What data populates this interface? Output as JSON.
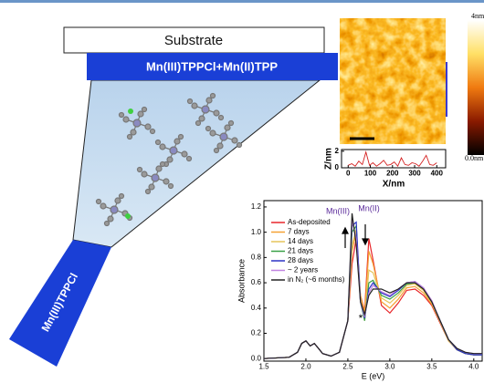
{
  "diagram": {
    "substrate": "Substrate",
    "top_layer": "Mn(III)TPPCl+Mn(II)TPP",
    "bottom_layer": "Mn(III)TPPCl"
  },
  "afm": {
    "scale_max": "4nm",
    "scale_min": "0.0nm"
  },
  "chart_data": [
    {
      "type": "line",
      "x_label": "E (eV)",
      "y_label": "Absorbance",
      "x": [
        1.5,
        1.8,
        1.9,
        1.95,
        2.0,
        2.05,
        2.1,
        2.15,
        2.2,
        2.3,
        2.4,
        2.5,
        2.55,
        2.6,
        2.65,
        2.7,
        2.75,
        2.8,
        2.9,
        3.0,
        3.1,
        3.2,
        3.3,
        3.4,
        3.5,
        3.6,
        3.7,
        3.8,
        3.9,
        4.0,
        4.1
      ],
      "xlim": [
        1.5,
        4.1
      ],
      "xticks": [
        1.5,
        {
          "value": 2,
          "label": "2.0"
        },
        2.5,
        {
          "value": 3,
          "label": "3.0"
        },
        3.5,
        {
          "value": 4,
          "label": "4.0"
        }
      ],
      "ylim": [
        -0.02,
        1.25
      ],
      "yticks": [
        {
          "value": 0,
          "label": "0.0"
        },
        0.2,
        0.4,
        0.6,
        0.8,
        {
          "value": 1,
          "label": "1.0"
        },
        1.2
      ],
      "annotations": [
        "Mn(III)",
        "Mn(II)",
        "*"
      ],
      "series": [
        {
          "name": "As-deposited",
          "color": "#e8262a",
          "values": [
            0,
            0.01,
            0.05,
            0.12,
            0.14,
            0.1,
            0.12,
            0.08,
            0.04,
            0.02,
            0.05,
            0.3,
            0.75,
            0.95,
            0.5,
            0.38,
            0.95,
            0.78,
            0.42,
            0.36,
            0.44,
            0.54,
            0.55,
            0.5,
            0.42,
            0.28,
            0.14,
            0.07,
            0.04,
            0.03,
            0.03
          ]
        },
        {
          "name": "7 days",
          "color": "#f5a033",
          "values": [
            0,
            0.01,
            0.05,
            0.12,
            0.14,
            0.1,
            0.12,
            0.08,
            0.04,
            0.02,
            0.05,
            0.3,
            0.85,
            1.0,
            0.5,
            0.36,
            0.85,
            0.75,
            0.45,
            0.4,
            0.47,
            0.56,
            0.57,
            0.52,
            0.43,
            0.29,
            0.14,
            0.07,
            0.04,
            0.03,
            0.03
          ]
        },
        {
          "name": "14 days",
          "color": "#e6c45a",
          "values": [
            0,
            0.01,
            0.05,
            0.12,
            0.14,
            0.1,
            0.12,
            0.08,
            0.04,
            0.02,
            0.05,
            0.3,
            0.9,
            1.02,
            0.48,
            0.3,
            0.7,
            0.68,
            0.48,
            0.44,
            0.5,
            0.58,
            0.59,
            0.54,
            0.44,
            0.29,
            0.14,
            0.07,
            0.04,
            0.03,
            0.03
          ]
        },
        {
          "name": "21 days",
          "color": "#38a047",
          "values": [
            0,
            0.01,
            0.05,
            0.12,
            0.14,
            0.1,
            0.12,
            0.08,
            0.04,
            0.02,
            0.05,
            0.3,
            1.0,
            1.05,
            0.45,
            0.3,
            0.6,
            0.62,
            0.5,
            0.47,
            0.52,
            0.59,
            0.6,
            0.55,
            0.45,
            0.3,
            0.15,
            0.07,
            0.04,
            0.03,
            0.03
          ]
        },
        {
          "name": "28 days",
          "color": "#2b33c6",
          "values": [
            0,
            0.01,
            0.05,
            0.12,
            0.14,
            0.1,
            0.12,
            0.08,
            0.04,
            0.02,
            0.05,
            0.3,
            1.05,
            1.08,
            0.45,
            0.32,
            0.55,
            0.6,
            0.52,
            0.49,
            0.54,
            0.6,
            0.61,
            0.56,
            0.45,
            0.3,
            0.15,
            0.07,
            0.04,
            0.03,
            0.03
          ]
        },
        {
          "name": "~ 2 years",
          "color": "#c184e0",
          "values": [
            0,
            0.01,
            0.05,
            0.12,
            0.14,
            0.1,
            0.12,
            0.08,
            0.04,
            0.02,
            0.05,
            0.3,
            1.1,
            0.95,
            0.45,
            0.33,
            0.52,
            0.58,
            0.53,
            0.5,
            0.55,
            0.6,
            0.61,
            0.56,
            0.46,
            0.3,
            0.15,
            0.08,
            0.05,
            0.04,
            0.04
          ]
        },
        {
          "name": "in N₂ (~6 months)",
          "color": "#222222",
          "values": [
            0,
            0.01,
            0.05,
            0.12,
            0.14,
            0.1,
            0.12,
            0.08,
            0.04,
            0.02,
            0.05,
            0.3,
            1.15,
            0.9,
            0.45,
            0.35,
            0.5,
            0.55,
            0.55,
            0.52,
            0.55,
            0.6,
            0.6,
            0.55,
            0.45,
            0.3,
            0.15,
            0.08,
            0.05,
            0.04,
            0.04
          ]
        }
      ]
    },
    {
      "type": "line",
      "x_label": "X/nm",
      "y_label": "Z/nm",
      "x": [
        0,
        16,
        32,
        48,
        64,
        80,
        96,
        112,
        128,
        144,
        160,
        176,
        192,
        208,
        224,
        240,
        256,
        272,
        288,
        304,
        320,
        336,
        352,
        368,
        384,
        400
      ],
      "xlim": [
        -30,
        440
      ],
      "xticks": [
        0,
        100,
        200,
        300,
        400
      ],
      "ylim": [
        0,
        2.2
      ],
      "yticks": [
        0,
        2
      ],
      "series": [
        {
          "name": null,
          "color": "#d42020",
          "values": [
            0.3,
            0.5,
            0.2,
            0.8,
            0.4,
            1.9,
            0.3,
            0.6,
            0.2,
            0.5,
            0.9,
            0.3,
            0.4,
            0.7,
            0.2,
            1.2,
            0.4,
            0.3,
            0.6,
            0.5,
            0.2,
            0.8,
            1.5,
            0.4,
            0.3,
            0.6
          ]
        }
      ]
    }
  ]
}
